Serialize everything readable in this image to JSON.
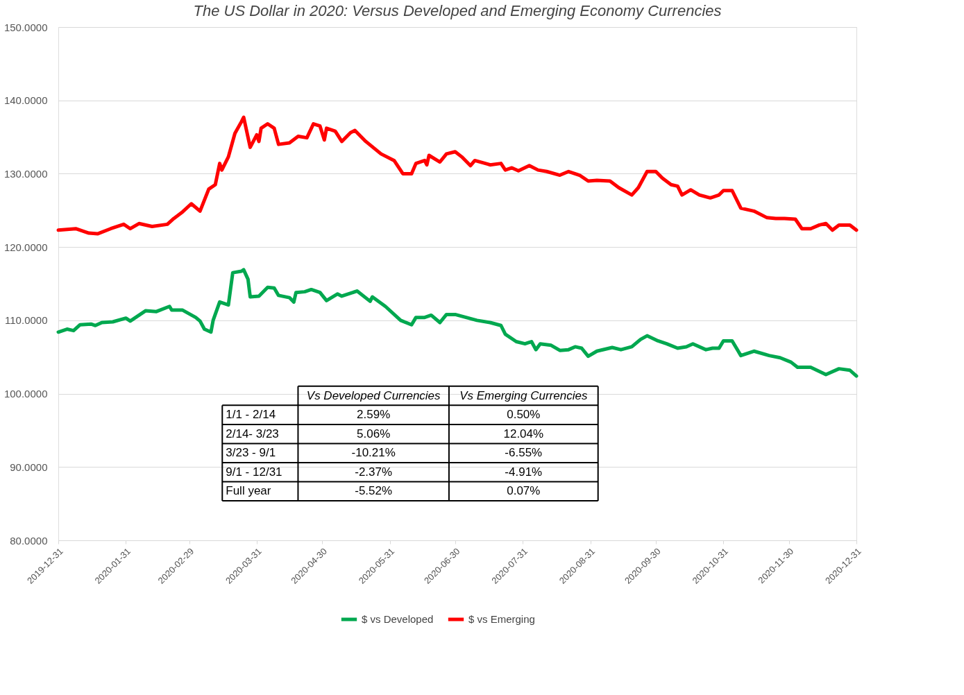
{
  "chart_data": {
    "type": "line",
    "title": "The US Dollar in 2020: Versus Developed and Emerging Economy Currencies",
    "ylim": [
      80,
      150
    ],
    "yticks": [
      {
        "value": 80,
        "label": "80.0000"
      },
      {
        "value": 90,
        "label": "90.0000"
      },
      {
        "value": 100,
        "label": "100.0000"
      },
      {
        "value": 110,
        "label": "110.0000"
      },
      {
        "value": 120,
        "label": "120.0000"
      },
      {
        "value": 130,
        "label": "130.0000"
      },
      {
        "value": 140,
        "label": "140.0000"
      },
      {
        "value": 150,
        "label": "150.0000"
      }
    ],
    "xlim": [
      "2019-12-31",
      "2020-12-31"
    ],
    "xticks": [
      "2019-12-31",
      "2020-01-31",
      "2020-02-29",
      "2020-03-31",
      "2020-04-30",
      "2020-05-31",
      "2020-06-30",
      "2020-07-31",
      "2020-08-31",
      "2020-09-30",
      "2020-10-31",
      "2020-11-30",
      "2020-12-31"
    ],
    "grid": "y",
    "legend": "bottom",
    "line_style": "solid",
    "marker": "none",
    "series": [
      {
        "name": "$ vs Developed",
        "color": "#00a84f",
        "x": [
          "2019-12-31",
          "2020-01-04",
          "2020-01-07",
          "2020-01-10",
          "2020-01-15",
          "2020-01-17",
          "2020-01-20",
          "2020-01-25",
          "2020-01-31",
          "2020-02-02",
          "2020-02-09",
          "2020-02-14",
          "2020-02-20",
          "2020-02-21",
          "2020-02-26",
          "2020-03-03",
          "2020-03-05",
          "2020-03-07",
          "2020-03-10",
          "2020-03-11",
          "2020-03-14",
          "2020-03-18",
          "2020-03-20",
          "2020-03-24",
          "2020-03-25",
          "2020-03-27",
          "2020-03-28",
          "2020-04-01",
          "2020-04-05",
          "2020-04-08",
          "2020-04-10",
          "2020-04-15",
          "2020-04-17",
          "2020-04-18",
          "2020-04-22",
          "2020-04-25",
          "2020-04-29",
          "2020-05-02",
          "2020-05-07",
          "2020-05-09",
          "2020-05-16",
          "2020-05-22",
          "2020-05-23",
          "2020-05-29",
          "2020-06-05",
          "2020-06-10",
          "2020-06-12",
          "2020-06-16",
          "2020-06-19",
          "2020-06-23",
          "2020-06-26",
          "2020-06-30",
          "2020-07-05",
          "2020-07-10",
          "2020-07-16",
          "2020-07-21",
          "2020-07-23",
          "2020-07-28",
          "2020-08-01",
          "2020-08-04",
          "2020-08-06",
          "2020-08-08",
          "2020-08-13",
          "2020-08-17",
          "2020-08-21",
          "2020-08-24",
          "2020-08-27",
          "2020-08-30",
          "2020-09-03",
          "2020-09-10",
          "2020-09-14",
          "2020-09-19",
          "2020-09-23",
          "2020-09-26",
          "2020-10-01",
          "2020-10-05",
          "2020-10-10",
          "2020-10-14",
          "2020-10-17",
          "2020-10-23",
          "2020-10-26",
          "2020-10-29",
          "2020-10-31",
          "2020-11-04",
          "2020-11-08",
          "2020-11-14",
          "2020-11-21",
          "2020-11-26",
          "2020-12-01",
          "2020-12-04",
          "2020-12-10",
          "2020-12-17",
          "2020-12-23",
          "2020-12-28",
          "2020-12-31"
        ],
        "values": [
          108.4,
          108.8,
          108.6,
          109.4,
          109.5,
          109.3,
          109.7,
          109.8,
          110.3,
          109.9,
          111.3,
          111.2,
          111.9,
          111.4,
          111.4,
          110.4,
          109.9,
          108.8,
          108.4,
          110.0,
          112.5,
          112.1,
          116.5,
          116.7,
          116.9,
          115.6,
          113.2,
          113.3,
          114.5,
          114.4,
          113.4,
          113.1,
          112.5,
          113.8,
          113.9,
          114.2,
          113.8,
          112.7,
          113.6,
          113.3,
          114.0,
          112.6,
          113.2,
          111.9,
          110.0,
          109.4,
          110.4,
          110.4,
          110.7,
          109.7,
          110.8,
          110.8,
          110.4,
          110.0,
          109.7,
          109.3,
          108.1,
          107.1,
          106.8,
          107.1,
          106.0,
          106.8,
          106.6,
          105.9,
          106.0,
          106.4,
          106.2,
          105.1,
          105.8,
          106.3,
          106.0,
          106.4,
          107.4,
          107.9,
          107.2,
          106.8,
          106.2,
          106.4,
          106.8,
          106.0,
          106.2,
          106.2,
          107.2,
          107.2,
          105.2,
          105.8,
          105.2,
          104.9,
          104.3,
          103.6,
          103.6,
          102.6,
          103.4,
          103.2,
          102.4
        ]
      },
      {
        "name": "$ vs Emerging",
        "color": "#ff0000",
        "x": [
          "2019-12-31",
          "2020-01-08",
          "2020-01-14",
          "2020-01-18",
          "2020-01-24",
          "2020-01-30",
          "2020-02-02",
          "2020-02-06",
          "2020-02-12",
          "2020-02-19",
          "2020-02-22",
          "2020-02-26",
          "2020-03-01",
          "2020-03-05",
          "2020-03-09",
          "2020-03-12",
          "2020-03-14",
          "2020-03-15",
          "2020-03-18",
          "2020-03-21",
          "2020-03-24",
          "2020-03-25",
          "2020-03-28",
          "2020-03-31",
          "2020-04-01",
          "2020-04-02",
          "2020-04-05",
          "2020-04-08",
          "2020-04-10",
          "2020-04-15",
          "2020-04-19",
          "2020-04-23",
          "2020-04-26",
          "2020-04-29",
          "2020-05-01",
          "2020-05-02",
          "2020-05-06",
          "2020-05-09",
          "2020-05-13",
          "2020-05-15",
          "2020-05-20",
          "2020-05-27",
          "2020-06-02",
          "2020-06-06",
          "2020-06-10",
          "2020-06-12",
          "2020-06-16",
          "2020-06-17",
          "2020-06-18",
          "2020-06-23",
          "2020-06-26",
          "2020-06-30",
          "2020-07-03",
          "2020-07-07",
          "2020-07-09",
          "2020-07-15",
          "2020-07-16",
          "2020-07-21",
          "2020-07-23",
          "2020-07-26",
          "2020-07-29",
          "2020-08-03",
          "2020-08-07",
          "2020-08-11",
          "2020-08-17",
          "2020-08-21",
          "2020-08-26",
          "2020-08-30",
          "2020-09-03",
          "2020-09-09",
          "2020-09-13",
          "2020-09-19",
          "2020-09-22",
          "2020-09-26",
          "2020-09-30",
          "2020-10-03",
          "2020-10-07",
          "2020-10-10",
          "2020-10-12",
          "2020-10-16",
          "2020-10-20",
          "2020-10-25",
          "2020-10-29",
          "2020-10-31",
          "2020-11-04",
          "2020-11-08",
          "2020-11-14",
          "2020-11-20",
          "2020-11-24",
          "2020-11-28",
          "2020-12-03",
          "2020-12-06",
          "2020-12-10",
          "2020-12-14",
          "2020-12-17",
          "2020-12-20",
          "2020-12-23",
          "2020-12-28",
          "2020-12-31"
        ],
        "values": [
          122.3,
          122.5,
          121.9,
          121.8,
          122.5,
          123.1,
          122.5,
          123.2,
          122.8,
          123.1,
          123.9,
          124.8,
          125.9,
          124.9,
          127.9,
          128.5,
          131.4,
          130.5,
          132.3,
          135.5,
          137.1,
          137.7,
          133.6,
          135.3,
          134.4,
          136.2,
          136.8,
          136.2,
          134.0,
          134.2,
          135.1,
          134.9,
          136.8,
          136.5,
          134.6,
          136.2,
          135.8,
          134.4,
          135.6,
          135.9,
          134.4,
          132.7,
          131.8,
          130.0,
          130.0,
          131.4,
          131.8,
          131.2,
          132.5,
          131.6,
          132.7,
          133.0,
          132.3,
          131.1,
          131.8,
          131.3,
          131.2,
          131.4,
          130.5,
          130.8,
          130.4,
          131.1,
          130.5,
          130.3,
          129.8,
          130.3,
          129.8,
          129.0,
          129.1,
          129.0,
          128.1,
          127.1,
          128.1,
          130.3,
          130.3,
          129.4,
          128.5,
          128.3,
          127.1,
          127.8,
          127.1,
          126.7,
          127.1,
          127.7,
          127.7,
          125.3,
          124.9,
          124.0,
          123.9,
          123.9,
          123.8,
          122.5,
          122.5,
          123.0,
          123.2,
          122.3,
          123.0,
          123.0,
          122.3
        ]
      }
    ],
    "annotations": [
      "Vs Developed Currencies",
      "Vs Emerging Currencies",
      "1/1 - 2/14",
      "2.59%",
      "0.50%",
      "2/14- 3/23",
      "5.06%",
      "12.04%",
      "3/23 - 9/1",
      "-10.21%",
      "-6.55%",
      "9/1 - 12/31",
      "-2.37%",
      "-4.91%",
      "Full year",
      "-5.52%",
      "0.07%"
    ]
  }
}
